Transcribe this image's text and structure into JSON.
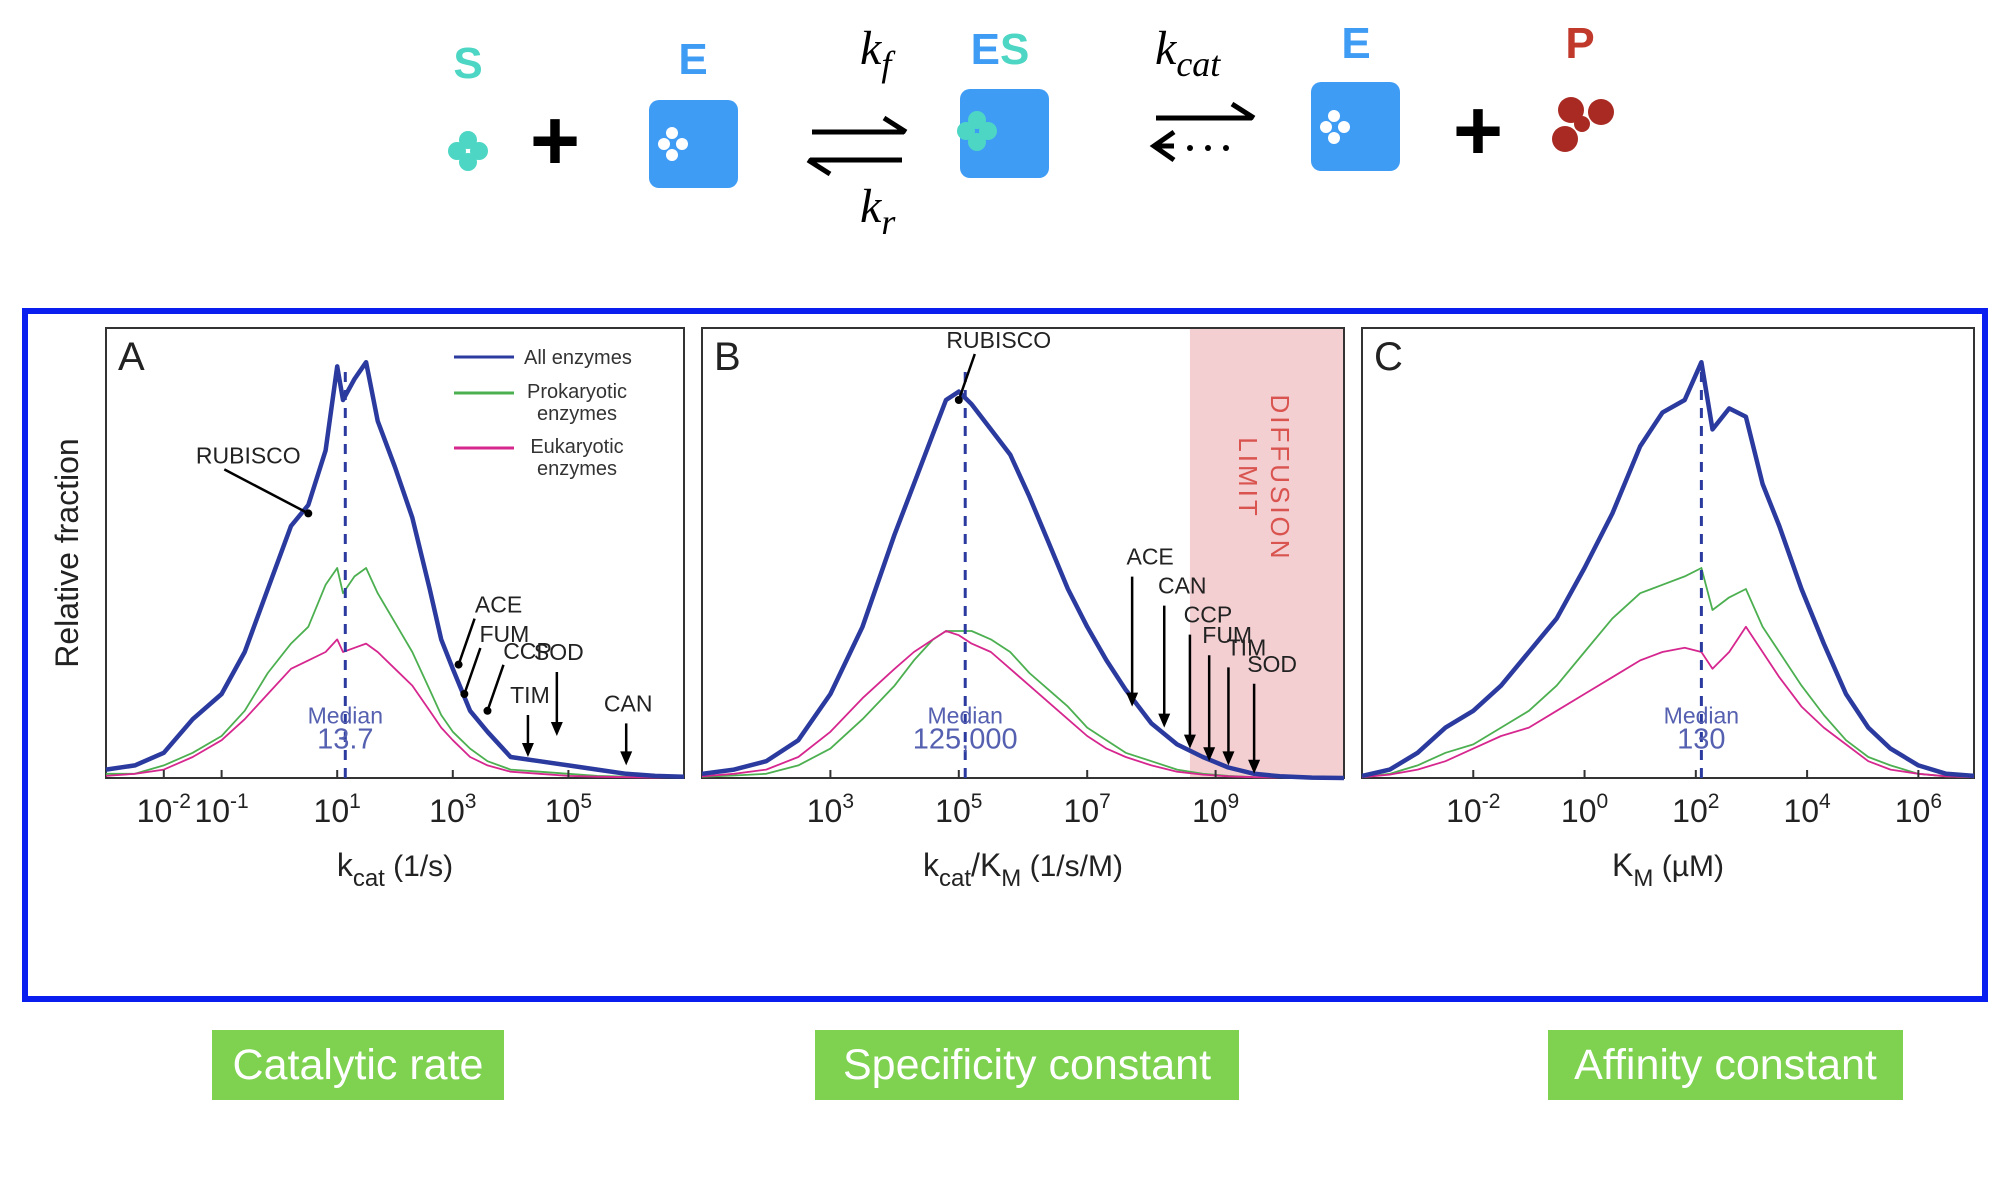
{
  "scheme": {
    "substrate_label": "S",
    "enzyme_label_1": "E",
    "complex_label_e": "E",
    "complex_label_s": "S",
    "enzyme_label_2": "E",
    "product_label": "P",
    "plus": "+",
    "rate_forward": "f",
    "rate_reverse": "r",
    "rate_cat": "cat",
    "k": "k",
    "colors": {
      "substrate": "#4dd6c4",
      "enzyme": "#3f9cf5",
      "product": "#c0392b"
    }
  },
  "labels": {
    "catalytic": "Catalytic rate",
    "specificity": "Specificity constant",
    "affinity": "Affinity constant"
  },
  "chart_data": [
    {
      "type": "line",
      "panel_letter": "A",
      "ylabel": "Relative fraction",
      "xlabel": "kcat (1/s)",
      "xlabel_main": "k",
      "xlabel_sub": "cat",
      "xlabel_unit": " (1/s)",
      "x_scale": "log10",
      "xlim_log10": [
        -3,
        7
      ],
      "ylim": [
        0,
        1
      ],
      "tick_labels": [
        {
          "base": "10",
          "exp": "-2",
          "log10": -2
        },
        {
          "base": "10",
          "exp": "-1",
          "log10": -1
        },
        {
          "base": "10",
          "exp": "1",
          "log10": 1
        },
        {
          "base": "10",
          "exp": "3",
          "log10": 3
        },
        {
          "base": "10",
          "exp": "5",
          "log10": 5
        }
      ],
      "median": {
        "label": "Median",
        "value": "13.7",
        "log10": 1.14
      },
      "legend": {
        "position": "top-right",
        "entries": [
          {
            "name": "All enzymes",
            "color": "#2b3a9e"
          },
          {
            "name": "Prokaryotic enzymes",
            "line1": "Prokaryotic",
            "line2": "enzymes",
            "color": "#4caf50"
          },
          {
            "name": "Eukaryotic enzymes",
            "line1": "Eukaryotic",
            "line2": "enzymes",
            "color": "#d6278f"
          }
        ]
      },
      "annotations": [
        {
          "text": "RUBISCO",
          "log10": 0.5,
          "y": 0.63
        },
        {
          "text": "ACE",
          "log10": 3.1,
          "y": 0.27
        },
        {
          "text": "FUM",
          "log10": 3.2,
          "y": 0.2
        },
        {
          "text": "CCP",
          "log10": 3.6,
          "y": 0.16
        },
        {
          "text": "SOD",
          "log10": 4.8,
          "y": 0.1
        },
        {
          "text": "TIM",
          "log10": 4.3,
          "y": 0.05
        },
        {
          "text": "CAN",
          "log10": 6.0,
          "y": 0.03
        }
      ],
      "series": [
        {
          "name": "All enzymes",
          "color": "#2b3a9e",
          "log10": [
            -3,
            -2.5,
            -2,
            -1.5,
            -1,
            -0.6,
            -0.2,
            0.2,
            0.5,
            0.8,
            1.0,
            1.1,
            1.3,
            1.5,
            1.7,
            2.0,
            2.3,
            2.6,
            2.8,
            3.0,
            3.3,
            3.6,
            4.0,
            4.5,
            5.0,
            5.5,
            6.0,
            6.5,
            7
          ],
          "values": [
            0.02,
            0.03,
            0.06,
            0.14,
            0.2,
            0.3,
            0.45,
            0.6,
            0.65,
            0.78,
            0.98,
            0.9,
            0.95,
            0.99,
            0.85,
            0.74,
            0.62,
            0.45,
            0.33,
            0.26,
            0.16,
            0.11,
            0.05,
            0.04,
            0.03,
            0.02,
            0.01,
            0.005,
            0.003
          ]
        },
        {
          "name": "Prokaryotic enzymes",
          "color": "#4caf50",
          "log10": [
            -3,
            -2.5,
            -2,
            -1.5,
            -1,
            -0.6,
            -0.2,
            0.2,
            0.5,
            0.8,
            1.0,
            1.1,
            1.3,
            1.5,
            1.7,
            2.0,
            2.3,
            2.6,
            2.8,
            3.0,
            3.3,
            3.6,
            4.0,
            4.5,
            5.0,
            5.5,
            6.0,
            6.5,
            7
          ],
          "values": [
            0.01,
            0.01,
            0.03,
            0.06,
            0.1,
            0.16,
            0.25,
            0.32,
            0.36,
            0.46,
            0.5,
            0.44,
            0.48,
            0.5,
            0.44,
            0.37,
            0.3,
            0.21,
            0.15,
            0.11,
            0.07,
            0.04,
            0.02,
            0.015,
            0.01,
            0.005,
            0.003,
            0.002,
            0.001
          ]
        },
        {
          "name": "Eukaryotic enzymes",
          "color": "#d6278f",
          "log10": [
            -3,
            -2.5,
            -2,
            -1.5,
            -1,
            -0.6,
            -0.2,
            0.2,
            0.5,
            0.8,
            1.0,
            1.1,
            1.3,
            1.5,
            1.7,
            2.0,
            2.3,
            2.6,
            2.8,
            3.0,
            3.3,
            3.6,
            4.0,
            4.5,
            5.0,
            5.5,
            6.0,
            6.5,
            7
          ],
          "values": [
            0.005,
            0.01,
            0.02,
            0.05,
            0.09,
            0.14,
            0.2,
            0.26,
            0.28,
            0.3,
            0.33,
            0.3,
            0.31,
            0.32,
            0.3,
            0.26,
            0.22,
            0.16,
            0.12,
            0.09,
            0.05,
            0.03,
            0.015,
            0.01,
            0.005,
            0.003,
            0.002,
            0.001,
            0.001
          ]
        }
      ]
    },
    {
      "type": "line",
      "panel_letter": "B",
      "xlabel": "kcat/KM (1/s/M)",
      "xlabel_main": "k",
      "xlabel_sub": "cat",
      "xlabel_mid": "/K",
      "xlabel_sub2": "M",
      "xlabel_unit": " (1/s/M)",
      "x_scale": "log10",
      "xlim_log10": [
        1,
        11
      ],
      "ylim": [
        0,
        1
      ],
      "tick_labels": [
        {
          "base": "10",
          "exp": "3",
          "log10": 3
        },
        {
          "base": "10",
          "exp": "5",
          "log10": 5
        },
        {
          "base": "10",
          "exp": "7",
          "log10": 7
        },
        {
          "base": "10",
          "exp": "9",
          "log10": 9
        }
      ],
      "median": {
        "label": "Median",
        "value": "125,000",
        "log10": 5.1
      },
      "shaded_region": {
        "text": "DIFFUSION LIMIT",
        "line1": "DIFFUSION",
        "line2": "LIMIT",
        "from_log10": 8.6,
        "to_log10": 11,
        "color": "#f3cfd2"
      },
      "annotations": [
        {
          "text": "RUBISCO",
          "log10": 5.0,
          "y": 0.9
        },
        {
          "text": "ACE",
          "log10": 7.7,
          "y": 0.17
        },
        {
          "text": "CAN",
          "log10": 8.2,
          "y": 0.12
        },
        {
          "text": "CCP",
          "log10": 8.6,
          "y": 0.07
        },
        {
          "text": "FUM",
          "log10": 8.9,
          "y": 0.04
        },
        {
          "text": "TIM",
          "log10": 9.2,
          "y": 0.03
        },
        {
          "text": "SOD",
          "log10": 9.6,
          "y": 0.01
        }
      ],
      "series": [
        {
          "name": "All enzymes",
          "color": "#2b3a9e",
          "log10": [
            1,
            1.5,
            2,
            2.5,
            3,
            3.5,
            4,
            4.3,
            4.6,
            4.8,
            5.0,
            5.2,
            5.5,
            5.8,
            6.1,
            6.4,
            6.7,
            7.0,
            7.3,
            7.6,
            8.0,
            8.4,
            8.8,
            9.2,
            9.6,
            10,
            10.5,
            11
          ],
          "values": [
            0.01,
            0.02,
            0.04,
            0.09,
            0.2,
            0.36,
            0.58,
            0.7,
            0.82,
            0.9,
            0.92,
            0.89,
            0.83,
            0.77,
            0.67,
            0.56,
            0.45,
            0.36,
            0.28,
            0.21,
            0.13,
            0.08,
            0.05,
            0.025,
            0.01,
            0.004,
            0.001,
            0
          ]
        },
        {
          "name": "Prokaryotic enzymes",
          "color": "#4caf50",
          "log10": [
            1,
            1.5,
            2,
            2.5,
            3,
            3.5,
            4,
            4.3,
            4.6,
            4.8,
            5.0,
            5.2,
            5.5,
            5.8,
            6.1,
            6.4,
            6.7,
            7.0,
            7.3,
            7.6,
            8.0,
            8.4,
            8.8,
            9.2,
            9.6,
            10,
            10.5,
            11
          ],
          "values": [
            0.003,
            0.006,
            0.01,
            0.03,
            0.07,
            0.14,
            0.22,
            0.28,
            0.33,
            0.35,
            0.35,
            0.35,
            0.33,
            0.3,
            0.25,
            0.21,
            0.17,
            0.12,
            0.09,
            0.06,
            0.04,
            0.02,
            0.01,
            0.005,
            0.002,
            0.001,
            0,
            0
          ]
        },
        {
          "name": "Eukaryotic enzymes",
          "color": "#d6278f",
          "log10": [
            1,
            1.5,
            2,
            2.5,
            3,
            3.5,
            4,
            4.3,
            4.6,
            4.8,
            5.0,
            5.2,
            5.5,
            5.8,
            6.1,
            6.4,
            6.7,
            7.0,
            7.3,
            7.6,
            8.0,
            8.4,
            8.8,
            9.2,
            9.6,
            10,
            10.5,
            11
          ],
          "values": [
            0.004,
            0.01,
            0.02,
            0.05,
            0.11,
            0.19,
            0.26,
            0.3,
            0.33,
            0.35,
            0.34,
            0.32,
            0.3,
            0.26,
            0.22,
            0.18,
            0.14,
            0.1,
            0.07,
            0.05,
            0.03,
            0.015,
            0.008,
            0.004,
            0.002,
            0.001,
            0,
            0
          ]
        }
      ]
    },
    {
      "type": "line",
      "panel_letter": "C",
      "xlabel": "KM (µM)",
      "xlabel_main": "K",
      "xlabel_sub": "M",
      "xlabel_unit": " (µM)",
      "x_scale": "log10",
      "xlim_log10": [
        -4,
        7
      ],
      "ylim": [
        0,
        1
      ],
      "tick_labels": [
        {
          "base": "10",
          "exp": "-2",
          "log10": -2
        },
        {
          "base": "10",
          "exp": "0",
          "log10": 0
        },
        {
          "base": "10",
          "exp": "2",
          "log10": 2
        },
        {
          "base": "10",
          "exp": "4",
          "log10": 4
        },
        {
          "base": "10",
          "exp": "6",
          "log10": 6
        }
      ],
      "median": {
        "label": "Median",
        "value": "130",
        "log10": 2.1
      },
      "series": [
        {
          "name": "All enzymes",
          "color": "#2b3a9e",
          "log10": [
            -4,
            -3.5,
            -3,
            -2.5,
            -2,
            -1.5,
            -1,
            -0.5,
            0,
            0.5,
            1.0,
            1.4,
            1.8,
            2.1,
            2.3,
            2.6,
            2.9,
            3.2,
            3.5,
            3.9,
            4.3,
            4.7,
            5.1,
            5.5,
            6.0,
            6.5,
            7
          ],
          "values": [
            0.005,
            0.02,
            0.06,
            0.12,
            0.16,
            0.22,
            0.3,
            0.38,
            0.5,
            0.63,
            0.79,
            0.87,
            0.9,
            0.99,
            0.83,
            0.88,
            0.86,
            0.7,
            0.6,
            0.45,
            0.32,
            0.2,
            0.12,
            0.07,
            0.03,
            0.01,
            0.005
          ]
        },
        {
          "name": "Prokaryotic enzymes",
          "color": "#4caf50",
          "log10": [
            -4,
            -3.5,
            -3,
            -2.5,
            -2,
            -1.5,
            -1,
            -0.5,
            0,
            0.5,
            1.0,
            1.4,
            1.8,
            2.1,
            2.3,
            2.6,
            2.9,
            3.2,
            3.5,
            3.9,
            4.3,
            4.7,
            5.1,
            5.5,
            6.0,
            6.5,
            7
          ],
          "values": [
            0.002,
            0.01,
            0.03,
            0.06,
            0.08,
            0.12,
            0.16,
            0.22,
            0.3,
            0.38,
            0.44,
            0.46,
            0.48,
            0.5,
            0.4,
            0.43,
            0.45,
            0.36,
            0.3,
            0.22,
            0.15,
            0.09,
            0.05,
            0.03,
            0.01,
            0.004,
            0.002
          ]
        },
        {
          "name": "Eukaryotic enzymes",
          "color": "#d6278f",
          "log10": [
            -4,
            -3.5,
            -3,
            -2.5,
            -2,
            -1.5,
            -1,
            -0.5,
            0,
            0.5,
            1.0,
            1.4,
            1.8,
            2.1,
            2.3,
            2.6,
            2.9,
            3.2,
            3.5,
            3.9,
            4.3,
            4.7,
            5.1,
            5.5,
            6.0,
            6.5,
            7
          ],
          "values": [
            0.002,
            0.008,
            0.02,
            0.04,
            0.07,
            0.1,
            0.12,
            0.16,
            0.2,
            0.24,
            0.28,
            0.3,
            0.31,
            0.3,
            0.26,
            0.3,
            0.36,
            0.3,
            0.24,
            0.17,
            0.12,
            0.08,
            0.04,
            0.02,
            0.01,
            0.004,
            0.002
          ]
        }
      ]
    }
  ]
}
